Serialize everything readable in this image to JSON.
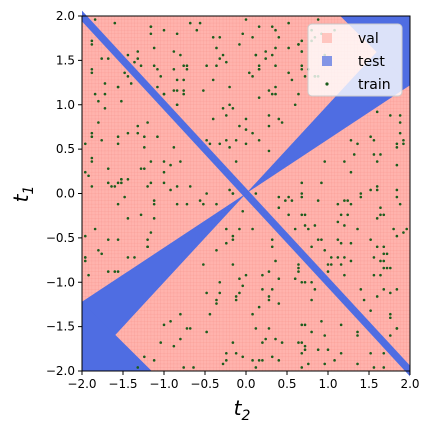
{
  "chart_data": {
    "type": "scatter",
    "title": "",
    "xlabel": "t",
    "xlabel_sub": "2",
    "ylabel": "t",
    "ylabel_sub": "1",
    "xlim": [
      -2.0,
      2.0
    ],
    "ylim": [
      -2.0,
      2.0
    ],
    "xticks": [
      -2.0,
      -1.5,
      -1.0,
      -0.5,
      0.0,
      0.5,
      1.0,
      1.5,
      2.0
    ],
    "yticks": [
      -2.0,
      -1.5,
      -1.0,
      -0.5,
      0.0,
      0.5,
      1.0,
      1.5,
      2.0
    ],
    "xtick_labels": [
      "−2.0",
      "−1.5",
      "−1.0",
      "−0.5",
      "0.0",
      "0.5",
      "1.0",
      "1.5",
      "2.0"
    ],
    "ytick_labels": [
      "−2.0",
      "−1.5",
      "−1.0",
      "−0.5",
      "0.0",
      "0.5",
      "1.0",
      "1.5",
      "2.0"
    ],
    "grid": false,
    "legend_position": "top-right",
    "series": [
      {
        "name": "val",
        "color": "#ffb3ad",
        "marker": "square",
        "region": "complement of test"
      },
      {
        "name": "test",
        "color": "#4f6de2",
        "marker": "square",
        "regions": [
          {
            "kind": "anti-diagonal band",
            "equation": "t1 = -t2",
            "half_width_t1": 0.06
          },
          {
            "kind": "cone",
            "center_line": "t1 = t2",
            "half_width_t1_at_t2_2": 0.78
          }
        ]
      },
      {
        "name": "train",
        "color": "#1a5c1a",
        "marker": "dot",
        "count": 420,
        "region": "sampled from val region"
      }
    ],
    "grid_resolution": 0.04
  }
}
